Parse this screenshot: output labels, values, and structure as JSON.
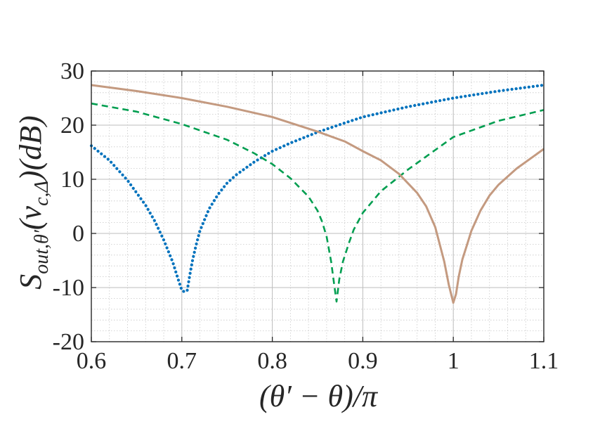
{
  "chart_data": {
    "type": "line",
    "title": "",
    "xlabel": "(θ′ − θ)/π",
    "ylabel": "S_{out,θ′}(ν_{c,Δ})(dB)",
    "ylabel_parts": {
      "main": "S",
      "sub": "out,θ′",
      "mid": "(ν",
      "sub2": "c,Δ",
      "tail": ")(dB)"
    },
    "xlim": [
      0.6,
      1.1
    ],
    "ylim": [
      -20,
      30
    ],
    "x_ticks": [
      0.6,
      0.7,
      0.8,
      0.9,
      1.0,
      1.1
    ],
    "x_tick_labels": [
      "0.6",
      "0.7",
      "0.8",
      "0.9",
      "1",
      "1.1"
    ],
    "y_ticks": [
      -20,
      -10,
      0,
      10,
      20,
      30
    ],
    "y_tick_labels": [
      "-20",
      "-10",
      "0",
      "10",
      "20",
      "30"
    ],
    "grid": true,
    "minor_grid": true,
    "legend": "none",
    "series": [
      {
        "style": "dotted",
        "color": "#0072BD",
        "x": [
          0.6,
          0.62,
          0.64,
          0.66,
          0.67,
          0.68,
          0.69,
          0.695,
          0.7,
          0.703,
          0.706,
          0.709,
          0.712,
          0.716,
          0.72,
          0.73,
          0.74,
          0.75,
          0.76,
          0.78,
          0.8,
          0.82,
          0.85,
          0.88,
          0.9,
          0.95,
          1.0,
          1.05,
          1.1
        ],
        "y": [
          16.2,
          13.5,
          9.8,
          5.2,
          2.3,
          -1.2,
          -5.3,
          -8.0,
          -10.5,
          -10.8,
          -10.5,
          -7.5,
          -4.8,
          -2.0,
          0.5,
          4.5,
          7.2,
          9.3,
          10.8,
          13.2,
          15.2,
          16.7,
          18.7,
          20.4,
          21.5,
          23.4,
          25.0,
          26.3,
          27.4
        ]
      },
      {
        "style": "dashed",
        "color": "#009E50",
        "x": [
          0.6,
          0.65,
          0.7,
          0.75,
          0.78,
          0.8,
          0.82,
          0.84,
          0.85,
          0.855,
          0.86,
          0.865,
          0.868,
          0.871,
          0.874,
          0.878,
          0.885,
          0.89,
          0.9,
          0.92,
          0.95,
          1.0,
          1.05,
          1.1
        ],
        "y": [
          24.0,
          22.5,
          20.2,
          17.3,
          14.8,
          12.8,
          10.2,
          6.8,
          4.2,
          2.2,
          -0.6,
          -5.2,
          -9.0,
          -12.6,
          -8.5,
          -5.2,
          -1.6,
          0.7,
          3.8,
          7.8,
          11.8,
          17.8,
          20.8,
          22.8
        ]
      },
      {
        "style": "solid",
        "color": "#C49A80",
        "x": [
          0.6,
          0.65,
          0.7,
          0.75,
          0.8,
          0.85,
          0.88,
          0.9,
          0.92,
          0.94,
          0.96,
          0.97,
          0.98,
          0.99,
          0.995,
          1.0,
          1.003,
          1.006,
          1.01,
          1.015,
          1.02,
          1.03,
          1.04,
          1.05,
          1.07,
          1.1
        ],
        "y": [
          27.4,
          26.3,
          25.0,
          23.4,
          21.5,
          18.8,
          17.0,
          15.2,
          13.5,
          11.0,
          7.5,
          5.0,
          1.2,
          -5.2,
          -9.5,
          -12.8,
          -11.2,
          -8.0,
          -4.8,
          -2.2,
          0.5,
          4.2,
          7.0,
          9.0,
          12.0,
          15.6
        ]
      }
    ]
  }
}
